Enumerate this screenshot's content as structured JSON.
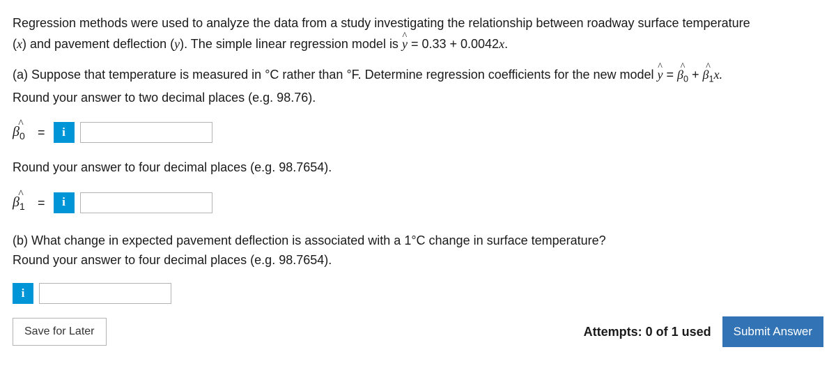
{
  "intro": {
    "line1_pre": "Regression methods were used to analyze the data from a study investigating the relationship between roadway surface temperature",
    "line2_pre": "(",
    "line2_x": "x",
    "line2_mid": ") and pavement deflection (",
    "line2_y": "y",
    "line2_post": "). The simple linear regression model is ",
    "equation_eq": " = 0.33 + 0.0042",
    "equation_x": "x",
    "equation_end": "."
  },
  "partA": {
    "text_pre": "(a) Suppose that temperature is measured in °C rather than °F. Determine regression coefficients for the new model ",
    "eq_mid1": " = ",
    "eq_plus": " + ",
    "eq_x": "x.",
    "round1": "Round your answer to two decimal places (e.g. 98.76).",
    "round2": "Round your answer to four decimal places (e.g. 98.7654)."
  },
  "partB": {
    "q": "(b) What change in expected pavement deflection is associated with a 1°C change in surface temperature?",
    "round": "Round your answer to four decimal places (e.g. 98.7654)."
  },
  "labels": {
    "beta0": "β",
    "beta0_sub": "0",
    "beta1": "β",
    "beta1_sub": "1",
    "equals": "=",
    "info": "i",
    "yhat": "y",
    "hat": "^"
  },
  "footer": {
    "save": "Save for Later",
    "attempts": "Attempts: 0 of 1 used",
    "submit": "Submit Answer"
  },
  "colors": {
    "info_bg": "#0095d6",
    "submit_bg": "#3173b4",
    "border": "#b3b3b3",
    "text": "#1a1a1a"
  }
}
